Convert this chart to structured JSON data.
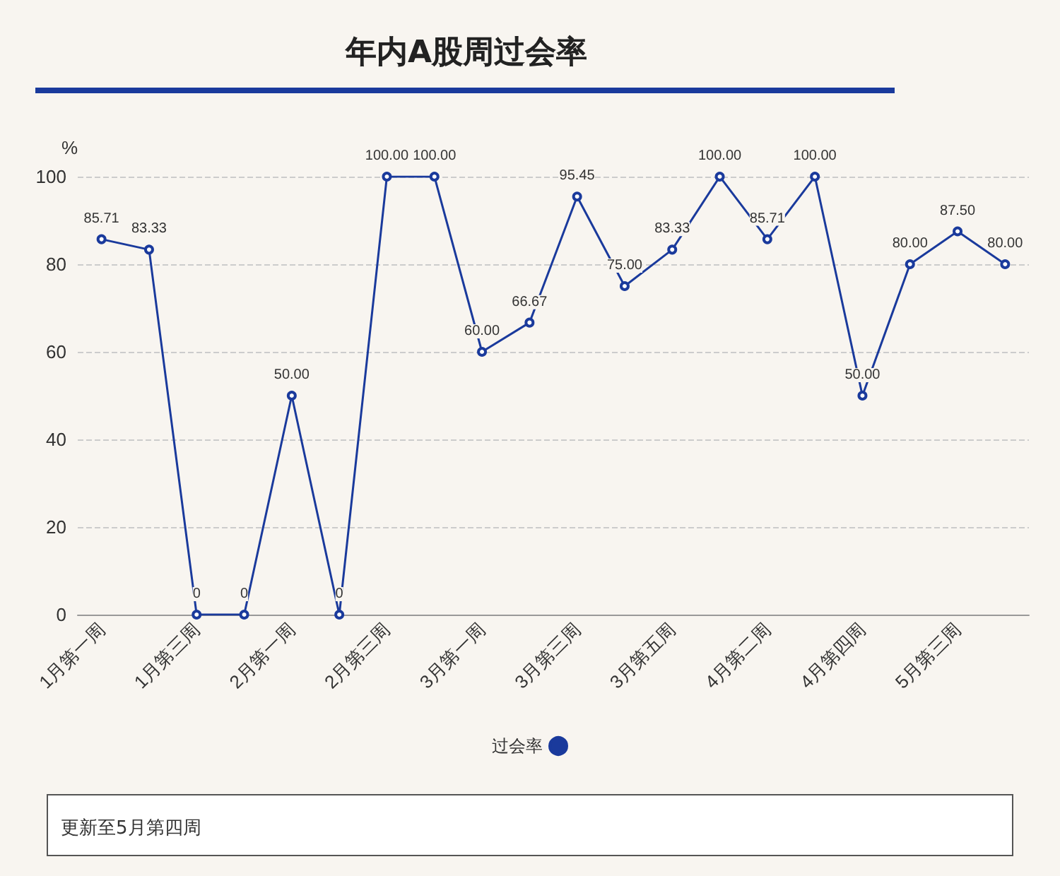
{
  "chart_data": {
    "type": "line",
    "title": "年内A股周过会率",
    "ylabel": "%",
    "categories": [
      "1月第一周",
      null,
      "1月第三周",
      null,
      "2月第一周",
      null,
      "2月第三周",
      null,
      "3月第一周",
      null,
      "3月第三周",
      null,
      "3月第五周",
      null,
      "4月第二周",
      null,
      "4月第四周",
      null,
      "5月第三周",
      null
    ],
    "series": [
      {
        "name": "过会率",
        "color": "#1a3a9c",
        "values": [
          85.71,
          83.33,
          0,
          0,
          50,
          0,
          100,
          100,
          60,
          66.67,
          95.45,
          75,
          83.33,
          100,
          85.71,
          100,
          50,
          80,
          87.5,
          80
        ],
        "value_labels": [
          "85.71",
          "83.33",
          "0",
          "0",
          "50.00",
          "0",
          "100.00",
          "100.00",
          "60.00",
          "66.67",
          "95.45",
          "75.00",
          "83.33",
          "100.00",
          "85.71",
          "100.00",
          "50.00",
          "80.00",
          "87.50",
          "80.00"
        ]
      }
    ],
    "ylim": [
      0,
      100
    ],
    "yticks": [
      0,
      20,
      40,
      60,
      80,
      100
    ],
    "grid": "y",
    "legend": "bottom",
    "marker": "circle",
    "line_style": "solid",
    "annotations": [
      "更新至5月第四周"
    ]
  }
}
